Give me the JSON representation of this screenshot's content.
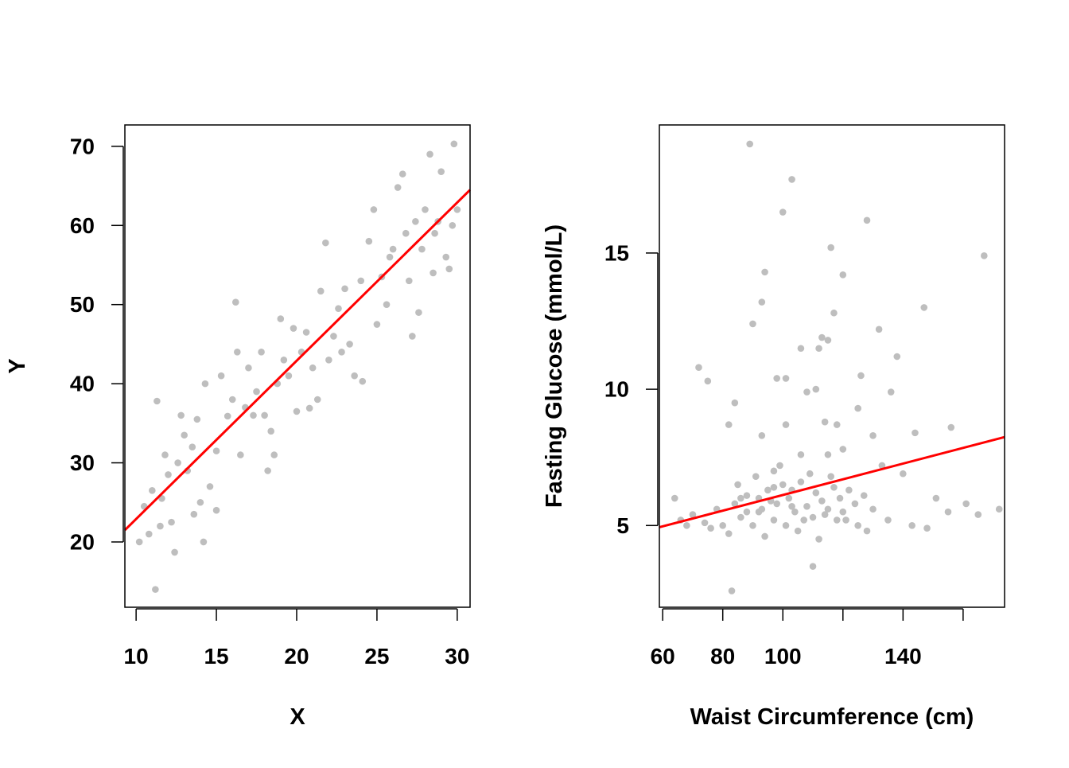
{
  "chart_data": [
    {
      "type": "scatter",
      "xlabel": "X",
      "ylabel": "Y",
      "xlim": [
        9.3,
        30.8
      ],
      "ylim": [
        11.75,
        72.7
      ],
      "xticks": [
        10,
        15,
        20,
        25,
        30
      ],
      "xtick_labels": [
        "10",
        "15",
        "20",
        "25",
        "30"
      ],
      "yticks": [
        20,
        30,
        40,
        50,
        60,
        70
      ],
      "ytick_labels": [
        "20",
        "30",
        "40",
        "50",
        "60",
        "70"
      ],
      "point_color": "#bebebe",
      "line_color": "#ff0000",
      "fit_line": {
        "intercept": 2.9,
        "slope": 2.0
      },
      "points": [
        [
          11.2,
          14.0
        ],
        [
          11.3,
          37.8
        ],
        [
          10.2,
          20
        ],
        [
          10.5,
          24.5
        ],
        [
          11,
          26.5
        ],
        [
          11.5,
          22
        ],
        [
          11.8,
          31
        ],
        [
          12,
          28.5
        ],
        [
          12.4,
          18.7
        ],
        [
          12.8,
          36
        ],
        [
          13,
          33.5
        ],
        [
          13.2,
          29
        ],
        [
          13.5,
          32
        ],
        [
          13.8,
          35.5
        ],
        [
          14,
          25
        ],
        [
          14.2,
          20
        ],
        [
          14.3,
          40
        ],
        [
          14.6,
          27
        ],
        [
          15,
          31.5
        ],
        [
          15,
          24
        ],
        [
          15.3,
          41
        ],
        [
          15.7,
          35.9
        ],
        [
          16,
          38
        ],
        [
          16.2,
          50.3
        ],
        [
          16.3,
          44
        ],
        [
          16.5,
          31
        ],
        [
          16.8,
          37
        ],
        [
          17,
          42
        ],
        [
          17.5,
          39
        ],
        [
          17.8,
          44
        ],
        [
          18,
          36
        ],
        [
          18.2,
          29
        ],
        [
          18.4,
          34
        ],
        [
          18.6,
          31
        ],
        [
          18.8,
          40
        ],
        [
          19,
          48.2
        ],
        [
          19.2,
          43
        ],
        [
          19.5,
          41
        ],
        [
          19.8,
          47
        ],
        [
          20,
          36.5
        ],
        [
          20.3,
          44
        ],
        [
          20.6,
          46.5
        ],
        [
          21,
          42
        ],
        [
          21.3,
          38
        ],
        [
          21.5,
          51.7
        ],
        [
          21.8,
          57.8
        ],
        [
          22,
          43
        ],
        [
          22.3,
          46
        ],
        [
          22.6,
          49.5
        ],
        [
          23,
          52
        ],
        [
          23.3,
          45
        ],
        [
          23.6,
          41
        ],
        [
          24,
          53
        ],
        [
          24.1,
          40.3
        ],
        [
          24.5,
          58
        ],
        [
          24.8,
          62
        ],
        [
          25,
          47.5
        ],
        [
          25.3,
          53.5
        ],
        [
          25.6,
          50
        ],
        [
          26,
          57
        ],
        [
          26.3,
          64.8
        ],
        [
          26.6,
          66.5
        ],
        [
          26.8,
          59
        ],
        [
          27,
          53
        ],
        [
          27.2,
          46
        ],
        [
          27.4,
          60.5
        ],
        [
          27.6,
          49
        ],
        [
          27.8,
          57
        ],
        [
          28,
          62
        ],
        [
          28.3,
          69
        ],
        [
          28.5,
          54
        ],
        [
          28.8,
          60.5
        ],
        [
          29,
          66.8
        ],
        [
          29.3,
          56
        ],
        [
          29.5,
          54.5
        ],
        [
          29.8,
          70.3
        ],
        [
          30,
          62
        ],
        [
          29.7,
          60
        ],
        [
          28.6,
          59
        ],
        [
          25.8,
          56
        ],
        [
          22.8,
          44
        ],
        [
          20.8,
          36.9
        ],
        [
          17.3,
          36
        ],
        [
          12.2,
          22.5
        ],
        [
          13.6,
          23.5
        ],
        [
          11.6,
          25.5
        ],
        [
          10.8,
          21
        ],
        [
          12.6,
          30
        ]
      ]
    },
    {
      "type": "scatter",
      "xlabel": "Waist Circumference (cm)",
      "ylabel": "Fasting Glucose (mmol/L)",
      "xlim": [
        58.9,
        173.8
      ],
      "ylim": [
        2.0,
        19.7
      ],
      "xticks": [
        60,
        80,
        100,
        120,
        140,
        160
      ],
      "xtick_labels": [
        "60",
        "80",
        "100",
        "",
        "140",
        ""
      ],
      "yticks": [
        5,
        10,
        15
      ],
      "ytick_labels": [
        "5",
        "10",
        "15"
      ],
      "point_color": "#bebebe",
      "line_color": "#ff0000",
      "fit_line": {
        "intercept": 3.24,
        "slope": 0.0288
      },
      "points": [
        [
          89,
          19.0
        ],
        [
          103,
          17.7
        ],
        [
          100,
          16.5
        ],
        [
          128,
          16.2
        ],
        [
          116,
          15.2
        ],
        [
          167,
          14.9
        ],
        [
          94,
          14.3
        ],
        [
          120,
          14.2
        ],
        [
          93,
          13.2
        ],
        [
          147,
          13.0
        ],
        [
          117,
          12.8
        ],
        [
          90,
          12.4
        ],
        [
          132,
          12.2
        ],
        [
          113,
          11.9
        ],
        [
          138,
          11.2
        ],
        [
          106,
          11.5
        ],
        [
          115,
          11.8
        ],
        [
          112,
          11.5
        ],
        [
          72,
          10.8
        ],
        [
          75,
          10.3
        ],
        [
          98,
          10.4
        ],
        [
          101,
          10.4
        ],
        [
          108,
          9.9
        ],
        [
          111,
          10.0
        ],
        [
          126,
          10.5
        ],
        [
          136,
          9.9
        ],
        [
          84,
          9.5
        ],
        [
          125,
          9.3
        ],
        [
          82,
          8.7
        ],
        [
          93,
          8.3
        ],
        [
          101,
          8.7
        ],
        [
          114,
          8.8
        ],
        [
          118,
          8.7
        ],
        [
          130,
          8.3
        ],
        [
          144,
          8.4
        ],
        [
          156,
          8.6
        ],
        [
          97,
          7.0
        ],
        [
          106,
          7.6
        ],
        [
          115,
          7.6
        ],
        [
          120,
          7.8
        ],
        [
          133,
          7.2
        ],
        [
          140,
          6.9
        ],
        [
          151,
          6.0
        ],
        [
          161,
          5.8
        ],
        [
          155,
          5.5
        ],
        [
          165,
          5.4
        ],
        [
          172,
          5.6
        ],
        [
          148,
          4.9
        ],
        [
          143,
          5.0
        ],
        [
          128,
          4.8
        ],
        [
          135,
          5.2
        ],
        [
          83,
          2.6
        ],
        [
          110,
          3.5
        ],
        [
          64,
          6.0
        ],
        [
          66,
          5.2
        ],
        [
          70,
          5.4
        ],
        [
          74,
          5.1
        ],
        [
          78,
          5.6
        ],
        [
          80,
          5.0
        ],
        [
          82,
          4.7
        ],
        [
          84,
          5.8
        ],
        [
          86,
          5.3
        ],
        [
          88,
          6.1
        ],
        [
          90,
          5.0
        ],
        [
          92,
          5.5
        ],
        [
          94,
          4.6
        ],
        [
          95,
          6.3
        ],
        [
          97,
          5.2
        ],
        [
          98,
          5.8
        ],
        [
          100,
          6.5
        ],
        [
          101,
          5.0
        ],
        [
          102,
          6.0
        ],
        [
          104,
          5.5
        ],
        [
          105,
          4.8
        ],
        [
          106,
          6.6
        ],
        [
          108,
          5.7
        ],
        [
          110,
          5.3
        ],
        [
          111,
          6.2
        ],
        [
          112,
          4.5
        ],
        [
          113,
          5.9
        ],
        [
          115,
          5.6
        ],
        [
          116,
          6.8
        ],
        [
          118,
          5.2
        ],
        [
          119,
          6.0
        ],
        [
          120,
          5.5
        ],
        [
          122,
          6.3
        ],
        [
          124,
          5.8
        ],
        [
          125,
          5.0
        ],
        [
          127,
          6.1
        ],
        [
          130,
          5.6
        ],
        [
          88,
          5.5
        ],
        [
          86,
          6.0
        ],
        [
          91,
          6.8
        ],
        [
          96,
          5.9
        ],
        [
          99,
          7.2
        ],
        [
          103,
          6.3
        ],
        [
          107,
          5.2
        ],
        [
          109,
          6.9
        ],
        [
          114,
          5.4
        ],
        [
          117,
          6.4
        ],
        [
          121,
          5.2
        ],
        [
          76,
          4.9
        ],
        [
          68,
          5.0
        ],
        [
          93,
          5.6
        ],
        [
          103,
          5.7
        ],
        [
          97,
          6.4
        ],
        [
          85,
          6.5
        ],
        [
          92,
          6.0
        ]
      ]
    }
  ]
}
